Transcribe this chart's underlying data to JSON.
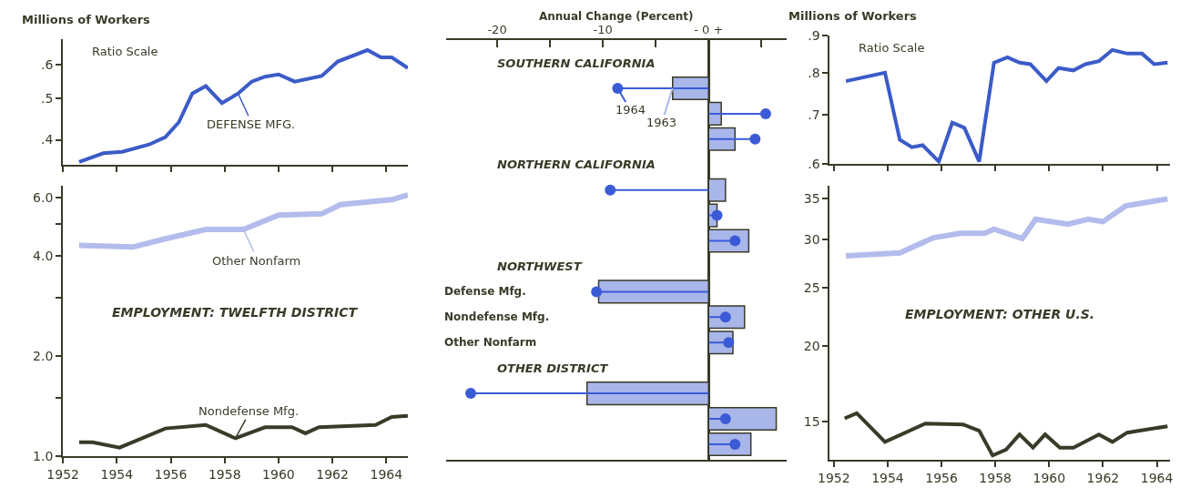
{
  "chart_data": [
    {
      "type": "line",
      "ylabel": "Millions of Workers",
      "annotations": [
        "Ratio Scale"
      ],
      "series": [
        {
          "name": "DEFENSE MFG.",
          "color": "#3b5bc8",
          "x": [
            1952.6,
            1953.5,
            1954.2,
            1955.2,
            1955.8,
            1956.3,
            1956.8,
            1957.3,
            1957.9,
            1958.5,
            1959.0,
            1959.5,
            1960.0,
            1960.6,
            1961.6,
            1962.2,
            1963.3,
            1963.8,
            1964.2,
            1964.8
          ],
          "values": [
            0.355,
            0.372,
            0.375,
            0.39,
            0.406,
            0.44,
            0.514,
            0.535,
            0.488,
            0.514,
            0.548,
            0.563,
            0.57,
            0.548,
            0.565,
            0.611,
            0.65,
            0.625,
            0.625,
            0.59
          ]
        }
      ],
      "xlim": [
        1952,
        1964.8
      ],
      "xticks": [
        1952,
        1954,
        1956,
        1958,
        1960,
        1962,
        1964
      ],
      "ylim": [
        0.35,
        0.69
      ],
      "yticks": [
        {
          "value": 0.4,
          "label": ".4"
        },
        {
          "value": 0.5,
          "label": ".5"
        },
        {
          "value": 0.6,
          "label": ".6"
        }
      ],
      "log": true,
      "tick_labels": "y",
      "marker": "none",
      "line_style": "solid"
    },
    {
      "type": "line",
      "title": "EMPLOYMENT: TWELFTH DISTRICT",
      "series": [
        {
          "name": "Other Nonfarm",
          "color": "#b3bcec",
          "x": [
            1952.6,
            1954.6,
            1955.8,
            1957.3,
            1958.7,
            1960.0,
            1961.6,
            1962.3,
            1964.2,
            1964.8
          ],
          "values": [
            4.3,
            4.25,
            4.5,
            4.8,
            4.8,
            5.3,
            5.35,
            5.7,
            5.9,
            6.1
          ]
        },
        {
          "name": "Nondefense Mfg.",
          "color": "#3a3a28",
          "x": [
            1952.6,
            1953.1,
            1954.1,
            1955.8,
            1957.3,
            1958.4,
            1959.5,
            1960.5,
            1961.0,
            1961.5,
            1963.6,
            1964.2,
            1964.8
          ],
          "values": [
            1.1,
            1.1,
            1.06,
            1.21,
            1.24,
            1.13,
            1.22,
            1.22,
            1.17,
            1.22,
            1.24,
            1.31,
            1.32
          ]
        }
      ],
      "xlim": [
        1952,
        1964.8
      ],
      "xticks": [
        1952,
        1954,
        1956,
        1958,
        1960,
        1962,
        1964
      ],
      "ylim": [
        1.0,
        6.5
      ],
      "yticks": [
        {
          "value": 1.0,
          "label": "1.0"
        },
        {
          "value": 1.5,
          "label": null
        },
        {
          "value": 2.0,
          "label": "2.0"
        },
        {
          "value": 3.0,
          "label": null
        },
        {
          "value": 4.0,
          "label": "4.0"
        },
        {
          "value": 5.0,
          "label": null
        },
        {
          "value": 6.0,
          "label": "6.0"
        }
      ],
      "log": true,
      "marker": "none",
      "line_style": "solid"
    },
    {
      "type": "bar",
      "orientation": "horizontal",
      "legend": "top",
      "xlabel": "Annual Change (Percent)",
      "categories": [
        "SOUTHERN CALIFORNIA",
        null,
        null,
        null,
        "NORTHERN CALIFORNIA",
        null,
        null,
        null,
        "NORTHWEST",
        "Defense Mfg.",
        "Nondefense Mfg.",
        "Other Nonfarm",
        "OTHER DISTRICT",
        null,
        null,
        null
      ],
      "series": [
        {
          "name": "1963",
          "type": "bar",
          "color": "#a8b6ea",
          "values": [
            null,
            -3.4,
            1.2,
            2.5,
            null,
            1.6,
            0.8,
            3.8,
            null,
            -10.4,
            3.4,
            2.3,
            null,
            -11.5,
            6.4,
            4.0
          ]
        },
        {
          "name": "1964",
          "type": "lollipop",
          "color": "#3b5bd6",
          "values": [
            null,
            -8.6,
            5.4,
            4.4,
            null,
            -9.3,
            0.8,
            2.5,
            null,
            -10.6,
            1.6,
            1.9,
            null,
            -22.5,
            1.6,
            2.5
          ]
        }
      ],
      "xlim": [
        -24.8,
        7.4
      ],
      "xticks": [
        {
          "value": -20,
          "label": "-20"
        },
        {
          "value": -15,
          "label": null
        },
        {
          "value": -10,
          "label": "-10"
        },
        {
          "value": -5,
          "label": null
        },
        {
          "value": 0,
          "label": "- 0 +"
        },
        {
          "value": 5,
          "label": null
        }
      ]
    },
    {
      "type": "line",
      "ylabel": "Millions of Workers",
      "annotations": [
        "Ratio Scale"
      ],
      "series": [
        {
          "color": "#3b5bc8",
          "x": [
            1952.45,
            1953.9,
            1954.45,
            1954.9,
            1955.3,
            1955.9,
            1956.4,
            1956.85,
            1957.4,
            1957.95,
            1958.45,
            1958.9,
            1959.3,
            1959.9,
            1960.35,
            1960.9,
            1961.35,
            1961.85,
            1962.35,
            1962.9,
            1963.45,
            1963.9,
            1964.4
          ],
          "values": [
            0.779,
            0.8,
            0.647,
            0.632,
            0.636,
            0.604,
            0.683,
            0.672,
            0.604,
            0.826,
            0.84,
            0.826,
            0.822,
            0.779,
            0.812,
            0.806,
            0.822,
            0.83,
            0.86,
            0.85,
            0.85,
            0.822,
            0.826
          ]
        }
      ],
      "xlim": [
        1951.85,
        1964.5
      ],
      "xticks": [
        1952,
        1954,
        1956,
        1958,
        1960,
        1962,
        1964
      ],
      "ylim": [
        0.6,
        0.9
      ],
      "yticks": [
        {
          "value": 0.6,
          "label": ".6"
        },
        {
          "value": 0.7,
          "label": ".7"
        },
        {
          "value": 0.8,
          "label": ".8"
        },
        {
          "value": 0.9,
          "label": ".9"
        }
      ],
      "log": true,
      "tick_labels": "y",
      "marker": "none",
      "line_style": "solid"
    },
    {
      "type": "line",
      "title": "EMPLOYMENT: OTHER U.S.",
      "series": [
        {
          "color": "#b3bcec",
          "x": [
            1952.45,
            1954.45,
            1955.7,
            1956.7,
            1957.6,
            1957.95,
            1959.0,
            1959.5,
            1960.7,
            1961.45,
            1962.0,
            1962.85,
            1964.4
          ],
          "values": [
            28.2,
            28.5,
            30.2,
            30.7,
            30.7,
            31.2,
            30.1,
            32.4,
            31.8,
            32.4,
            32.1,
            34.1,
            35.0
          ]
        },
        {
          "color": "#3a3a28",
          "x": [
            1952.4,
            1952.85,
            1953.9,
            1955.4,
            1956.8,
            1957.4,
            1957.9,
            1958.4,
            1958.9,
            1959.4,
            1959.85,
            1960.4,
            1960.9,
            1961.85,
            1962.35,
            1962.9,
            1964.4
          ],
          "values": [
            15.2,
            15.5,
            13.9,
            14.9,
            14.85,
            14.5,
            13.2,
            13.5,
            14.3,
            13.6,
            14.3,
            13.6,
            13.6,
            14.3,
            13.9,
            14.4,
            14.75
          ]
        }
      ],
      "xlim": [
        1951.85,
        1964.5
      ],
      "xticks": [
        1952,
        1954,
        1956,
        1958,
        1960,
        1962,
        1964
      ],
      "ylim": [
        13,
        36.8
      ],
      "yticks": [
        15,
        20,
        25,
        30,
        35
      ],
      "log": true,
      "marker": "none",
      "line_style": "solid"
    }
  ]
}
